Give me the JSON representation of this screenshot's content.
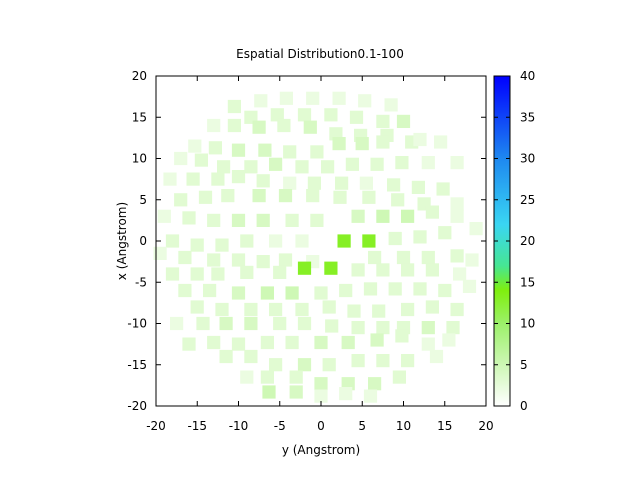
{
  "chart_data": {
    "type": "heatmap",
    "title": "Espatial Distribution0.1-100",
    "xlabel": "y (Angstrom)",
    "ylabel": "x (Angstrom)",
    "xlim": [
      -20,
      20
    ],
    "ylim": [
      -20,
      20
    ],
    "xticks": [
      "-20",
      "-15",
      "-10",
      "-5",
      "0",
      "5",
      "10",
      "15",
      "20"
    ],
    "yticks": [
      "-20",
      "-15",
      "-10",
      "-5",
      "0",
      "5",
      "10",
      "15",
      "20"
    ],
    "colorbar": {
      "range": [
        0,
        40
      ],
      "ticks": [
        "0",
        "5",
        "10",
        "15",
        "20",
        "25",
        "30",
        "35",
        "40"
      ],
      "stops": [
        {
          "value": 0,
          "color": "#ffffff"
        },
        {
          "value": 10,
          "color": "#9cf06a"
        },
        {
          "value": 14,
          "color": "#7fef0e"
        },
        {
          "value": 17,
          "color": "#46e693"
        },
        {
          "value": 22,
          "color": "#3ad6f2"
        },
        {
          "value": 30,
          "color": "#1e88f0"
        },
        {
          "value": 40,
          "color": "#0000ff"
        }
      ]
    },
    "cell_size": 1.6,
    "points": [
      [
        -10.5,
        16.3,
        3
      ],
      [
        -7.3,
        17.0,
        2
      ],
      [
        -4.2,
        17.3,
        2
      ],
      [
        -1.0,
        17.3,
        2
      ],
      [
        2.2,
        17.3,
        2
      ],
      [
        5.3,
        17.0,
        2
      ],
      [
        8.5,
        16.5,
        2
      ],
      [
        -8.5,
        15.0,
        3
      ],
      [
        -5.3,
        15.3,
        3
      ],
      [
        -2.0,
        15.3,
        3
      ],
      [
        1.2,
        15.3,
        3
      ],
      [
        4.3,
        15.0,
        3
      ],
      [
        7.5,
        14.5,
        3
      ],
      [
        10.0,
        14.5,
        4
      ],
      [
        -13.0,
        14.0,
        2
      ],
      [
        -10.5,
        14.0,
        3
      ],
      [
        -7.5,
        13.8,
        4
      ],
      [
        -4.5,
        14.0,
        3
      ],
      [
        -1.3,
        13.8,
        4
      ],
      [
        1.8,
        13.0,
        3
      ],
      [
        4.8,
        12.8,
        3
      ],
      [
        8.0,
        12.8,
        3
      ],
      [
        11.0,
        12.0,
        3
      ],
      [
        -15.3,
        11.5,
        2
      ],
      [
        -12.8,
        11.3,
        3
      ],
      [
        -10.0,
        11.0,
        4
      ],
      [
        -6.8,
        11.0,
        4
      ],
      [
        -3.8,
        10.8,
        3
      ],
      [
        -0.5,
        10.8,
        3
      ],
      [
        2.2,
        11.8,
        4
      ],
      [
        5.0,
        11.8,
        4
      ],
      [
        7.5,
        12.0,
        3
      ],
      [
        12.0,
        12.3,
        2
      ],
      [
        14.5,
        12.0,
        2
      ],
      [
        -17.0,
        10.0,
        2
      ],
      [
        -14.5,
        9.8,
        3
      ],
      [
        -11.8,
        9.0,
        3
      ],
      [
        -8.5,
        9.0,
        3
      ],
      [
        -5.5,
        9.3,
        4
      ],
      [
        -2.3,
        9.0,
        3
      ],
      [
        0.8,
        9.0,
        3
      ],
      [
        3.8,
        9.3,
        3
      ],
      [
        6.8,
        9.3,
        3
      ],
      [
        9.8,
        9.5,
        3
      ],
      [
        13.0,
        9.5,
        2
      ],
      [
        16.5,
        9.5,
        2
      ],
      [
        -18.3,
        7.5,
        2
      ],
      [
        -15.5,
        7.5,
        3
      ],
      [
        -12.5,
        7.5,
        3
      ],
      [
        -10.0,
        7.8,
        3
      ],
      [
        -7.0,
        7.3,
        3
      ],
      [
        -3.8,
        7.0,
        2
      ],
      [
        -0.8,
        7.0,
        3
      ],
      [
        2.5,
        7.0,
        3
      ],
      [
        5.5,
        7.0,
        2
      ],
      [
        8.8,
        6.8,
        3
      ],
      [
        11.8,
        6.5,
        3
      ],
      [
        14.8,
        6.3,
        3
      ],
      [
        -17.0,
        5.0,
        3
      ],
      [
        -14.0,
        5.3,
        3
      ],
      [
        -11.3,
        5.5,
        3
      ],
      [
        -7.5,
        5.5,
        4
      ],
      [
        -4.3,
        5.5,
        4
      ],
      [
        -1.0,
        5.5,
        3
      ],
      [
        2.3,
        5.3,
        3
      ],
      [
        5.8,
        5.3,
        3
      ],
      [
        9.3,
        5.0,
        3
      ],
      [
        12.5,
        4.5,
        3
      ],
      [
        16.5,
        4.5,
        2
      ],
      [
        -19.0,
        3.0,
        2
      ],
      [
        -16.0,
        2.8,
        3
      ],
      [
        -13.0,
        2.5,
        3
      ],
      [
        -10.0,
        2.5,
        4
      ],
      [
        -7.0,
        2.5,
        4
      ],
      [
        -3.5,
        2.5,
        3
      ],
      [
        -0.5,
        2.5,
        3
      ],
      [
        4.5,
        3.0,
        4
      ],
      [
        7.5,
        3.0,
        5
      ],
      [
        10.5,
        3.0,
        5
      ],
      [
        13.5,
        3.5,
        3
      ],
      [
        16.5,
        3.0,
        2
      ],
      [
        18.8,
        1.5,
        2
      ],
      [
        -18.0,
        0.0,
        3
      ],
      [
        -15.0,
        -0.5,
        3
      ],
      [
        -12.0,
        -0.5,
        3
      ],
      [
        -9.0,
        0.0,
        3
      ],
      [
        -5.5,
        0.0,
        2
      ],
      [
        -2.3,
        0.0,
        2
      ],
      [
        2.8,
        0.0,
        13
      ],
      [
        5.8,
        0.0,
        13
      ],
      [
        9.0,
        0.3,
        3
      ],
      [
        12.0,
        0.5,
        3
      ],
      [
        15.0,
        1.0,
        3
      ],
      [
        -19.5,
        -1.5,
        2
      ],
      [
        -16.5,
        -2.0,
        3
      ],
      [
        -13.0,
        -2.3,
        3
      ],
      [
        -10.0,
        -2.3,
        3
      ],
      [
        -7.0,
        -2.5,
        3
      ],
      [
        -4.3,
        -2.3,
        3
      ],
      [
        -1.0,
        -2.5,
        2
      ],
      [
        6.5,
        -2.0,
        3
      ],
      [
        10.0,
        -2.0,
        3
      ],
      [
        13.0,
        -2.0,
        3
      ],
      [
        16.5,
        -1.8,
        3
      ],
      [
        18.3,
        -2.3,
        2
      ],
      [
        -18.0,
        -4.0,
        3
      ],
      [
        -15.0,
        -4.0,
        3
      ],
      [
        -12.5,
        -4.0,
        3
      ],
      [
        -9.0,
        -3.8,
        3
      ],
      [
        -5.0,
        -3.8,
        3
      ],
      [
        -2.0,
        -3.3,
        13
      ],
      [
        1.2,
        -3.3,
        13
      ],
      [
        4.5,
        -3.5,
        3
      ],
      [
        7.5,
        -3.5,
        3
      ],
      [
        10.5,
        -3.5,
        3
      ],
      [
        13.5,
        -3.5,
        3
      ],
      [
        16.8,
        -4.0,
        2
      ],
      [
        -16.5,
        -6.0,
        3
      ],
      [
        -13.5,
        -6.0,
        3
      ],
      [
        -10.0,
        -6.3,
        4
      ],
      [
        -6.5,
        -6.3,
        5
      ],
      [
        -3.5,
        -6.3,
        5
      ],
      [
        0.0,
        -6.3,
        3
      ],
      [
        3.0,
        -6.0,
        3
      ],
      [
        6.0,
        -5.8,
        3
      ],
      [
        9.0,
        -5.8,
        3
      ],
      [
        12.0,
        -5.8,
        3
      ],
      [
        15.0,
        -6.0,
        3
      ],
      [
        18.0,
        -5.5,
        2
      ],
      [
        -15.0,
        -8.0,
        3
      ],
      [
        -12.0,
        -8.3,
        3
      ],
      [
        -8.5,
        -8.3,
        3
      ],
      [
        -5.5,
        -8.3,
        3
      ],
      [
        -2.3,
        -8.3,
        3
      ],
      [
        1.0,
        -8.0,
        3
      ],
      [
        4.0,
        -8.5,
        3
      ],
      [
        7.0,
        -8.5,
        3
      ],
      [
        10.5,
        -8.3,
        3
      ],
      [
        13.5,
        -8.0,
        3
      ],
      [
        16.5,
        -8.3,
        3
      ],
      [
        -17.5,
        -10.0,
        2
      ],
      [
        -14.3,
        -10.0,
        3
      ],
      [
        -11.5,
        -10.0,
        4
      ],
      [
        -8.5,
        -10.0,
        4
      ],
      [
        -5.0,
        -10.0,
        3
      ],
      [
        -2.0,
        -10.0,
        3
      ],
      [
        1.3,
        -10.3,
        3
      ],
      [
        4.5,
        -10.5,
        3
      ],
      [
        7.5,
        -10.5,
        3
      ],
      [
        10.0,
        -10.5,
        3
      ],
      [
        13.0,
        -10.5,
        4
      ],
      [
        16.0,
        -10.5,
        3
      ],
      [
        -16.0,
        -12.5,
        3
      ],
      [
        -13.0,
        -12.3,
        3
      ],
      [
        -10.0,
        -12.5,
        3
      ],
      [
        -6.5,
        -12.3,
        3
      ],
      [
        -3.5,
        -12.3,
        3
      ],
      [
        0.0,
        -12.3,
        4
      ],
      [
        3.3,
        -12.3,
        4
      ],
      [
        6.8,
        -12.0,
        4
      ],
      [
        9.8,
        -11.5,
        3
      ],
      [
        13.0,
        -12.5,
        2
      ],
      [
        15.5,
        -12.0,
        2
      ],
      [
        -11.5,
        -14.0,
        3
      ],
      [
        -8.5,
        -14.0,
        3
      ],
      [
        -5.5,
        -15.0,
        3
      ],
      [
        -2.0,
        -15.0,
        4
      ],
      [
        1.0,
        -15.0,
        3
      ],
      [
        4.5,
        -14.5,
        3
      ],
      [
        7.5,
        -14.5,
        3
      ],
      [
        10.5,
        -14.5,
        3
      ],
      [
        14.0,
        -14.0,
        2
      ],
      [
        -9.0,
        -16.5,
        2
      ],
      [
        -6.5,
        -16.5,
        3
      ],
      [
        -3.0,
        -16.5,
        3
      ],
      [
        0.0,
        -17.3,
        4
      ],
      [
        3.3,
        -17.3,
        4
      ],
      [
        6.5,
        -17.3,
        4
      ],
      [
        9.5,
        -16.5,
        3
      ],
      [
        -6.3,
        -18.3,
        5
      ],
      [
        -3.0,
        -18.3,
        4
      ],
      [
        0.0,
        -18.8,
        2
      ],
      [
        3.0,
        -18.5,
        2
      ],
      [
        6.0,
        -18.8,
        2
      ]
    ]
  }
}
